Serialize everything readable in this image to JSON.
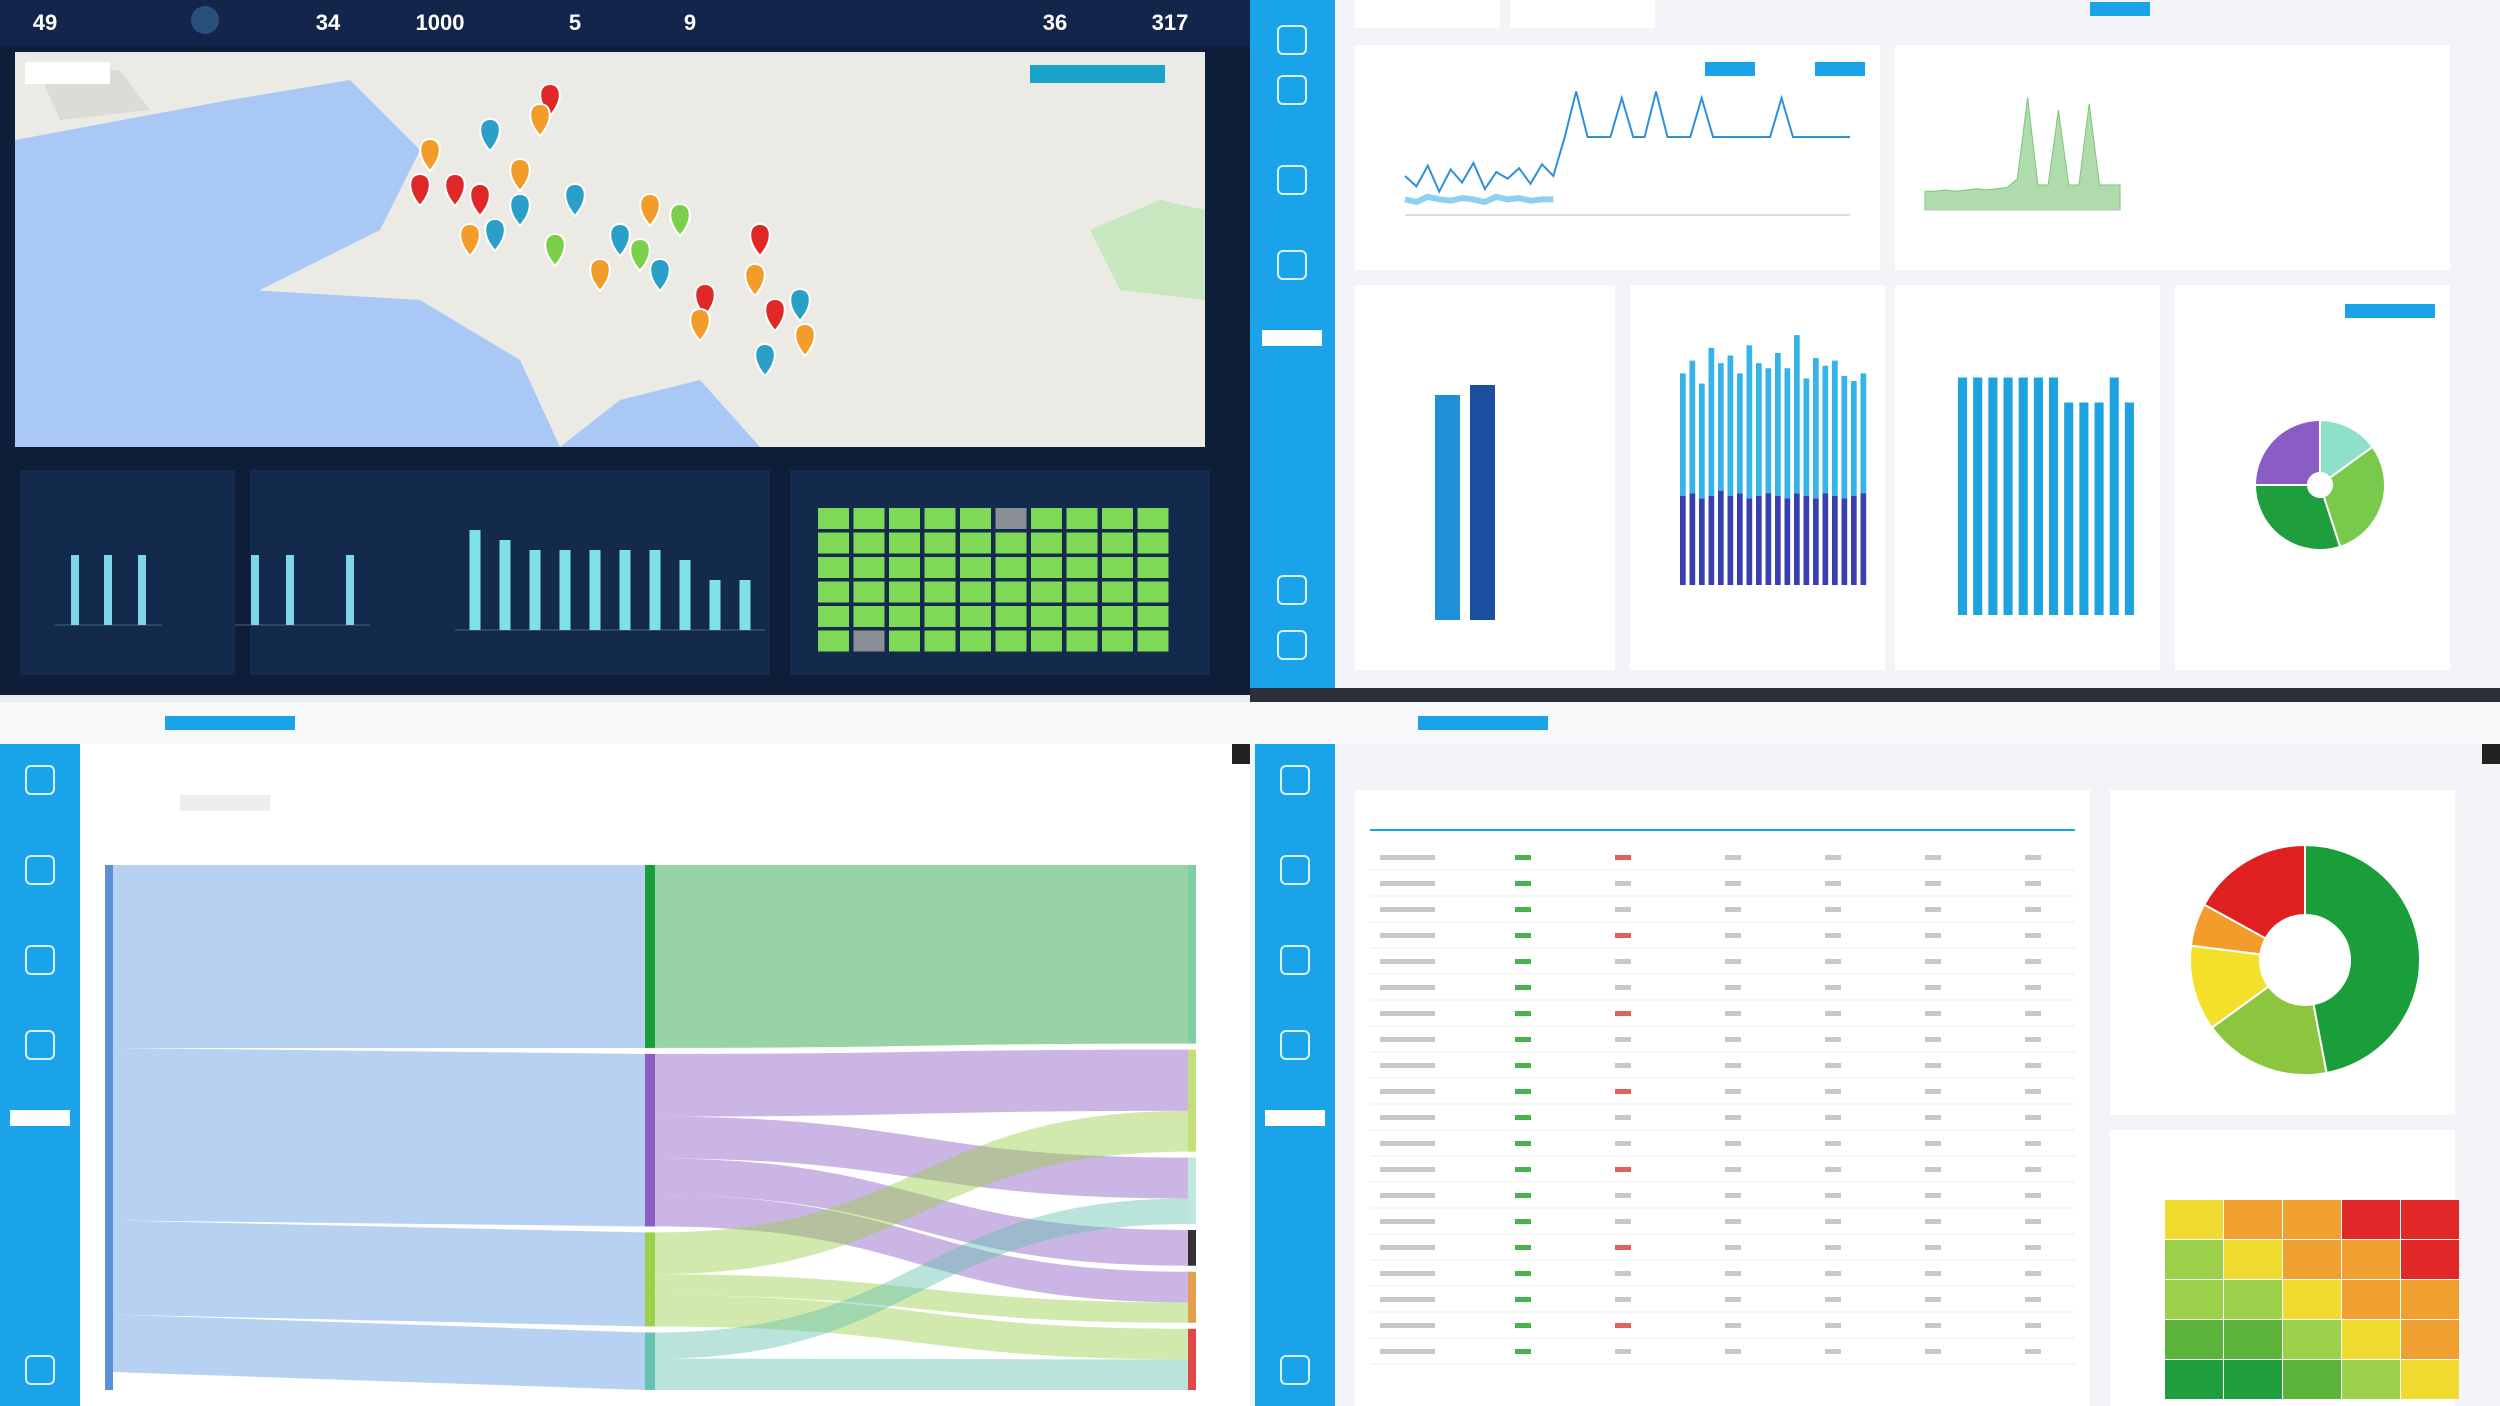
{
  "stats": [
    49,
    34,
    1000,
    5,
    9,
    36,
    317
  ],
  "dark_bars": [
    {
      "values": [
        4,
        4,
        4
      ],
      "ylim": [
        0,
        6
      ]
    },
    {
      "values": [
        4,
        4,
        4
      ],
      "ylim": [
        0,
        6
      ]
    },
    {
      "values": [
        10,
        9,
        8,
        8,
        8,
        8,
        8,
        7,
        5,
        5
      ],
      "ylim": [
        0,
        12
      ]
    }
  ],
  "line_chart": {
    "ylim": [
      0,
      100
    ],
    "series": [
      {
        "color": "#2f8fd8",
        "values": [
          30,
          22,
          38,
          18,
          35,
          25,
          40,
          20,
          33,
          28,
          36,
          24,
          39,
          30,
          60,
          95,
          60,
          60,
          60,
          90,
          60,
          60,
          95,
          60,
          60,
          60,
          90,
          60,
          60,
          60,
          60,
          60,
          60,
          90,
          60,
          60,
          60,
          60,
          60,
          60
        ]
      },
      {
        "color": "#8fd0f2",
        "values": [
          12,
          10,
          14,
          12,
          11,
          13,
          12,
          10,
          14,
          12,
          13,
          11,
          12,
          12,
          null,
          null,
          null,
          null,
          null,
          null,
          null,
          null,
          null,
          null,
          null,
          null,
          null,
          null,
          null,
          null,
          null,
          null,
          null,
          null,
          null,
          null,
          null,
          null,
          null,
          null
        ]
      }
    ]
  },
  "area_chart": {
    "ylim": [
      0,
      100
    ],
    "color": "#7cc576",
    "values": [
      15,
      15,
      16,
      15,
      16,
      17,
      16,
      17,
      18,
      25,
      90,
      20,
      20,
      80,
      20,
      20,
      85,
      20,
      20,
      20
    ]
  },
  "pair_bars": {
    "ylim": [
      0,
      100
    ],
    "values": [
      90,
      94
    ],
    "colors": [
      "#1f8fd8",
      "#1c4fa0"
    ]
  },
  "stacked_bars": {
    "ylim": [
      0,
      100
    ],
    "series": [
      {
        "color": "#3a3fb0",
        "values": [
          35,
          36,
          34,
          35,
          37,
          35,
          36,
          34,
          35,
          36,
          35,
          34,
          36,
          35,
          34,
          36,
          35,
          34,
          35,
          36
        ]
      },
      {
        "color": "#35b4e8",
        "values": [
          48,
          52,
          45,
          58,
          50,
          55,
          47,
          60,
          52,
          49,
          56,
          51,
          62,
          46,
          55,
          50,
          53,
          48,
          45,
          47
        ]
      }
    ]
  },
  "blue_bars": {
    "ylim": [
      0,
      100
    ],
    "color": "#1fa3e0",
    "values": [
      95,
      95,
      95,
      95,
      95,
      95,
      95,
      85,
      85,
      85,
      95,
      85
    ]
  },
  "pie": {
    "values": [
      15,
      30,
      30,
      25
    ],
    "colors": [
      "#8fe0c8",
      "#79c94c",
      "#1f9e3e",
      "#8a5cc4"
    ]
  },
  "sankey": {
    "flows": [
      [
        35,
        0,
        0,
        0,
        0,
        0
      ],
      [
        0,
        12,
        8,
        7,
        6,
        0
      ],
      [
        0,
        8,
        0,
        0,
        4,
        6
      ],
      [
        0,
        0,
        5,
        0,
        0,
        6
      ]
    ],
    "mid_colors": [
      "#1a9e3a",
      "#8a5cc4",
      "#9ccf4a",
      "#66c2b0"
    ],
    "right_colors": [
      "#7fd0a0",
      "#c3df7a",
      "#bfe8dc",
      "#333333",
      "#e0a050",
      "#e04848"
    ]
  },
  "donut": {
    "values": [
      47,
      18,
      12,
      6,
      17
    ],
    "colors": [
      "#1a9e3a",
      "#8cc63f",
      "#f2e02a",
      "#f39c2a",
      "#e02020"
    ]
  },
  "heatmap": {
    "rows": [
      [
        4,
        5,
        5,
        6,
        6
      ],
      [
        3,
        4,
        5,
        5,
        6
      ],
      [
        3,
        3,
        4,
        5,
        5
      ],
      [
        2,
        2,
        3,
        4,
        5
      ],
      [
        1,
        1,
        2,
        3,
        4
      ]
    ],
    "colors": [
      "#1f9e3e",
      "#5cb33a",
      "#9ccf4a",
      "#f0dc30",
      "#f0a030",
      "#e02828"
    ]
  }
}
